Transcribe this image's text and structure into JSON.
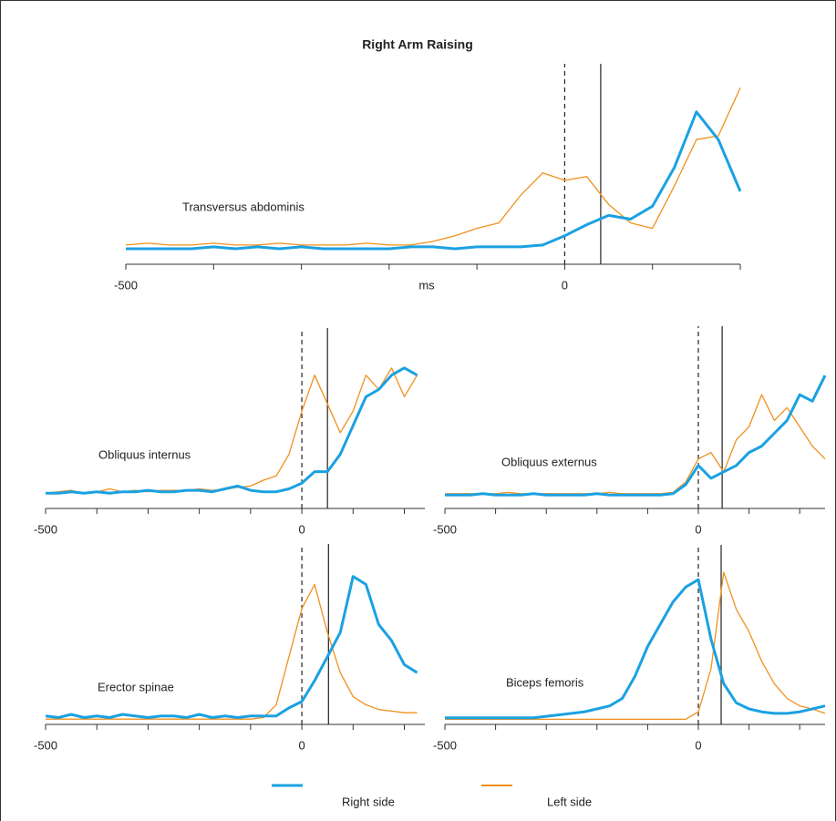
{
  "title": "Right Arm Raising",
  "chart_data": [
    {
      "type": "line",
      "title": "Transversus abdominis",
      "x_label": "ms",
      "x": [
        -500,
        -475,
        -450,
        -425,
        -400,
        -375,
        -350,
        -325,
        -300,
        -275,
        -250,
        -225,
        -200,
        -175,
        -150,
        -125,
        -100,
        -75,
        -50,
        -25,
        0,
        25,
        50,
        75,
        100,
        125,
        150,
        175,
        200
      ],
      "series": [
        {
          "name": "Right side",
          "color": "#1ba1e2",
          "values": [
            1,
            1,
            1,
            1,
            2,
            1,
            2,
            1,
            2,
            1,
            1,
            1,
            1,
            2,
            2,
            1,
            2,
            2,
            2,
            3,
            8,
            14,
            19,
            17,
            24,
            45,
            75,
            60,
            32
          ]
        },
        {
          "name": "Left side",
          "color": "#f0901c",
          "values": [
            3,
            4,
            3,
            3,
            4,
            3,
            3,
            4,
            3,
            3,
            3,
            4,
            3,
            3,
            5,
            8,
            12,
            15,
            30,
            42,
            38,
            40,
            25,
            15,
            12,
            35,
            60,
            62,
            88
          ]
        }
      ],
      "xlim": [
        -500,
        200
      ],
      "ylim": [
        0,
        100
      ],
      "xticks": [
        -500,
        0
      ],
      "minor_xticks": [
        -400,
        -300,
        -200,
        -100,
        100,
        200
      ],
      "vlines": [
        {
          "value": 0,
          "style": "dashed"
        },
        {
          "value": 41,
          "style": "solid"
        }
      ]
    },
    {
      "type": "line",
      "title": "Obliquus internus",
      "x": [
        -500,
        -475,
        -450,
        -425,
        -400,
        -375,
        -350,
        -325,
        -300,
        -275,
        -250,
        -225,
        -200,
        -175,
        -150,
        -125,
        -100,
        -75,
        -50,
        -25,
        0,
        25,
        50,
        75,
        100,
        125,
        150,
        175,
        200,
        225
      ],
      "series": [
        {
          "name": "Right side",
          "color": "#1ba1e2",
          "values": [
            3,
            3,
            4,
            3,
            4,
            3,
            4,
            4,
            5,
            4,
            4,
            5,
            5,
            4,
            6,
            8,
            5,
            4,
            4,
            6,
            10,
            18,
            18,
            30,
            50,
            70,
            75,
            85,
            90,
            85
          ]
        },
        {
          "name": "Left side",
          "color": "#f0901c",
          "values": [
            3,
            4,
            5,
            3,
            4,
            6,
            4,
            5,
            4,
            5,
            5,
            5,
            6,
            5,
            6,
            7,
            8,
            12,
            15,
            30,
            60,
            85,
            65,
            45,
            60,
            85,
            75,
            90,
            70,
            85
          ]
        }
      ],
      "xlim": [
        -500,
        240
      ],
      "ylim": [
        0,
        100
      ],
      "xticks": [
        -500,
        0
      ],
      "minor_xticks": [
        -400,
        -300,
        -200,
        -100,
        100,
        200
      ],
      "vlines": [
        {
          "value": 0,
          "style": "dashed"
        },
        {
          "value": 50,
          "style": "solid"
        }
      ]
    },
    {
      "type": "line",
      "title": "Obliquus externus",
      "x": [
        -500,
        -475,
        -450,
        -425,
        -400,
        -375,
        -350,
        -325,
        -300,
        -275,
        -250,
        -225,
        -200,
        -175,
        -150,
        -125,
        -100,
        -75,
        -50,
        -25,
        0,
        25,
        50,
        75,
        100,
        125,
        150,
        175,
        200,
        225,
        250
      ],
      "series": [
        {
          "name": "Right side",
          "color": "#1ba1e2",
          "values": [
            2,
            2,
            2,
            3,
            2,
            2,
            2,
            3,
            2,
            2,
            2,
            2,
            3,
            2,
            2,
            2,
            2,
            2,
            3,
            10,
            25,
            15,
            20,
            25,
            35,
            40,
            50,
            60,
            80,
            75,
            95
          ]
        },
        {
          "name": "Left side",
          "color": "#f0901c",
          "values": [
            3,
            3,
            3,
            3,
            3,
            4,
            3,
            3,
            3,
            3,
            3,
            3,
            3,
            4,
            3,
            3,
            3,
            3,
            4,
            12,
            30,
            35,
            20,
            45,
            55,
            80,
            60,
            70,
            55,
            40,
            30
          ]
        }
      ],
      "xlim": [
        -500,
        250
      ],
      "ylim": [
        0,
        100
      ],
      "xticks": [
        -500,
        0
      ],
      "minor_xticks": [
        -400,
        -300,
        -200,
        -100,
        100,
        200
      ],
      "vlines": [
        {
          "value": 0,
          "style": "dashed"
        },
        {
          "value": 47,
          "style": "solid"
        }
      ]
    },
    {
      "type": "line",
      "title": "Erector spinae",
      "x": [
        -500,
        -475,
        -450,
        -425,
        -400,
        -375,
        -350,
        -325,
        -300,
        -275,
        -250,
        -225,
        -200,
        -175,
        -150,
        -125,
        -100,
        -75,
        -50,
        -25,
        0,
        25,
        50,
        75,
        100,
        125,
        150,
        175,
        200,
        225
      ],
      "series": [
        {
          "name": "Right side",
          "color": "#1ba1e2",
          "values": [
            3,
            2,
            4,
            2,
            3,
            2,
            4,
            3,
            2,
            3,
            3,
            2,
            4,
            2,
            3,
            2,
            3,
            3,
            3,
            8,
            12,
            25,
            40,
            55,
            90,
            85,
            60,
            50,
            35,
            30
          ]
        },
        {
          "name": "Left side",
          "color": "#f0901c",
          "values": [
            1,
            1,
            1,
            1,
            1,
            1,
            1,
            1,
            1,
            1,
            1,
            1,
            1,
            1,
            1,
            1,
            1,
            2,
            10,
            40,
            70,
            85,
            55,
            30,
            15,
            10,
            7,
            6,
            5,
            5
          ]
        }
      ],
      "xlim": [
        -500,
        240
      ],
      "ylim": [
        0,
        100
      ],
      "xticks": [
        -500,
        0
      ],
      "minor_xticks": [
        -400,
        -300,
        -200,
        -100,
        100,
        200
      ],
      "vlines": [
        {
          "value": 0,
          "style": "dashed"
        },
        {
          "value": 52,
          "style": "solid"
        }
      ]
    },
    {
      "type": "line",
      "title": "Biceps femoris",
      "x": [
        -500,
        -475,
        -450,
        -425,
        -400,
        -375,
        -350,
        -325,
        -300,
        -275,
        -250,
        -225,
        -200,
        -175,
        -150,
        -125,
        -100,
        -75,
        -50,
        -25,
        0,
        25,
        50,
        75,
        100,
        125,
        150,
        175,
        200,
        225,
        250
      ],
      "series": [
        {
          "name": "Right side",
          "color": "#1ba1e2",
          "values": [
            2,
            2,
            2,
            2,
            2,
            2,
            2,
            2,
            3,
            4,
            5,
            6,
            8,
            10,
            15,
            30,
            50,
            65,
            80,
            90,
            95,
            55,
            25,
            12,
            8,
            6,
            5,
            5,
            6,
            8,
            10
          ]
        },
        {
          "name": "Left side",
          "color": "#f0901c",
          "values": [
            1,
            1,
            1,
            1,
            1,
            1,
            1,
            1,
            1,
            1,
            1,
            1,
            1,
            1,
            1,
            1,
            1,
            1,
            1,
            1,
            6,
            35,
            100,
            75,
            60,
            40,
            25,
            15,
            10,
            8,
            5
          ]
        }
      ],
      "xlim": [
        -500,
        250
      ],
      "ylim": [
        0,
        100
      ],
      "xticks": [
        -500,
        0
      ],
      "minor_xticks": [
        -400,
        -300,
        -200,
        -100,
        100,
        200
      ],
      "vlines": [
        {
          "value": 0,
          "style": "dashed"
        },
        {
          "value": 45,
          "style": "solid"
        }
      ]
    }
  ]
}
